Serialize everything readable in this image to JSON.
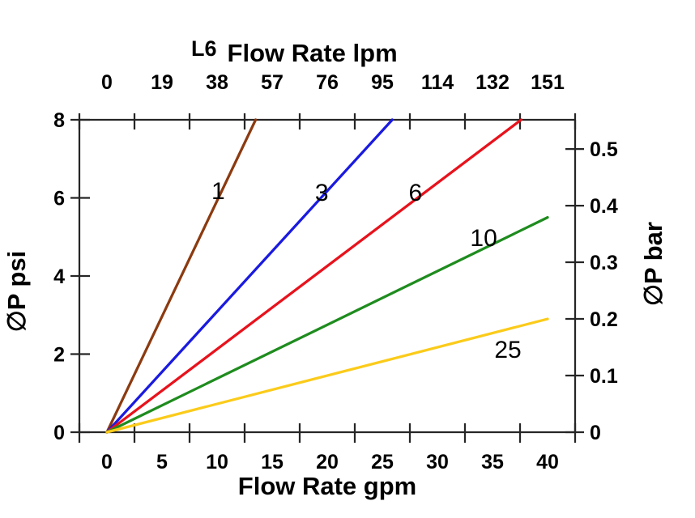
{
  "chart_data": {
    "type": "line",
    "title": {
      "prefix": "L6",
      "text": "Flow Rate lpm"
    },
    "top_axis": {
      "unit": "lpm",
      "tick_labels": [
        "0",
        "19",
        "38",
        "57",
        "76",
        "95",
        "114",
        "132",
        "151"
      ]
    },
    "bottom_axis": {
      "label": "Flow Rate gpm",
      "unit": "gpm",
      "tick_labels": [
        "0",
        "5",
        "10",
        "15",
        "20",
        "25",
        "30",
        "35",
        "40"
      ],
      "tick_values_gpm": [
        0,
        5,
        10,
        15,
        20,
        25,
        30,
        35,
        40
      ],
      "axis_range_gpm": [
        -2.5,
        42.5
      ]
    },
    "left_axis": {
      "label": "∅P psi",
      "tick_labels": [
        "8",
        "6",
        "4",
        "2",
        "0"
      ],
      "tick_values_psi": [
        8,
        6,
        4,
        2,
        0
      ],
      "range_psi": [
        0,
        8
      ]
    },
    "right_axis": {
      "label": "∅P bar",
      "tick_labels": [
        "0.5",
        "0.4",
        "0.3",
        "0.2",
        "0.1",
        "0"
      ],
      "tick_values_bar": [
        0.5,
        0.4,
        0.3,
        0.2,
        0.1,
        0
      ]
    },
    "grid": "off",
    "legend": "inline-labels",
    "series": [
      {
        "name": "1",
        "color": "#8C3A10",
        "points_gpm_psi": [
          [
            0,
            0
          ],
          [
            13.5,
            8
          ]
        ],
        "label_at_gpm_psi": [
          10.1,
          6.18
        ]
      },
      {
        "name": "3",
        "color": "#1A1AE0",
        "points_gpm_psi": [
          [
            0,
            0
          ],
          [
            25.9,
            8
          ]
        ],
        "label_at_gpm_psi": [
          19.5,
          6.13
        ]
      },
      {
        "name": "6",
        "color": "#E8121C",
        "points_gpm_psi": [
          [
            0,
            0
          ],
          [
            37.6,
            8
          ]
        ],
        "label_at_gpm_psi": [
          28.0,
          6.13
        ]
      },
      {
        "name": "10",
        "color": "#1E8C1E",
        "points_gpm_psi": [
          [
            0,
            0
          ],
          [
            40,
            5.5
          ]
        ],
        "label_at_gpm_psi": [
          34.2,
          4.97
        ]
      },
      {
        "name": "25",
        "color": "#FBCB1A",
        "points_gpm_psi": [
          [
            0,
            0
          ],
          [
            40,
            2.9
          ]
        ],
        "label_at_gpm_psi": [
          36.4,
          2.11
        ]
      }
    ]
  }
}
